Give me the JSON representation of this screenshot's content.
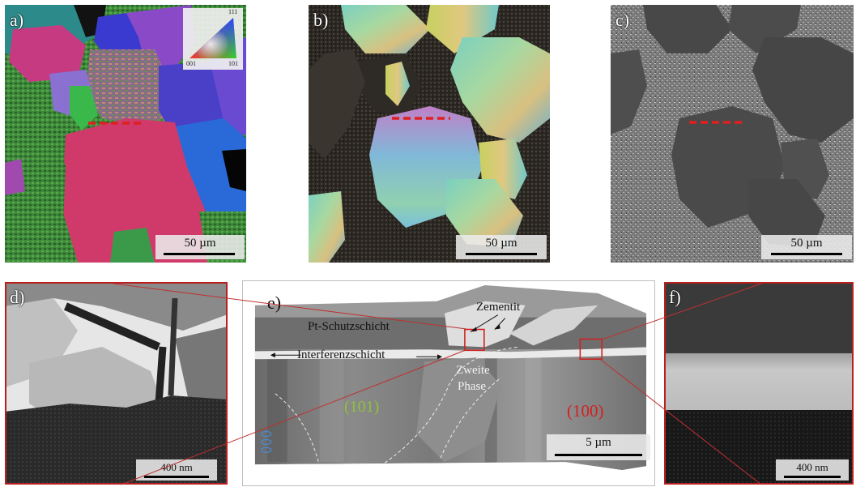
{
  "panels": {
    "a": {
      "label": "a)",
      "scale": "50 µm"
    },
    "b": {
      "label": "b)",
      "scale": "50 µm"
    },
    "c": {
      "label": "c)",
      "scale": "50 µm"
    },
    "d": {
      "label": "d)",
      "scale": "400 nm"
    },
    "e": {
      "label": "e)",
      "scale": "5 µm",
      "annotations": {
        "zementit": "Zementit",
        "pt_schicht": "Pt-Schutzschicht",
        "interferenz": "Interferenzschicht",
        "zweite_1": "Zweite",
        "zweite_2": "Phase",
        "orient_101": "(101)",
        "orient_100": "(100)"
      }
    },
    "f": {
      "label": "f)",
      "scale": "400 nm"
    }
  },
  "ipf_key": {
    "top": "111",
    "left": "001",
    "right": "101"
  },
  "colors": {
    "frame_red": "#b82020",
    "orient_101": "#8fc23a",
    "orient_100": "#d22020",
    "dash_red": "#e02020"
  }
}
